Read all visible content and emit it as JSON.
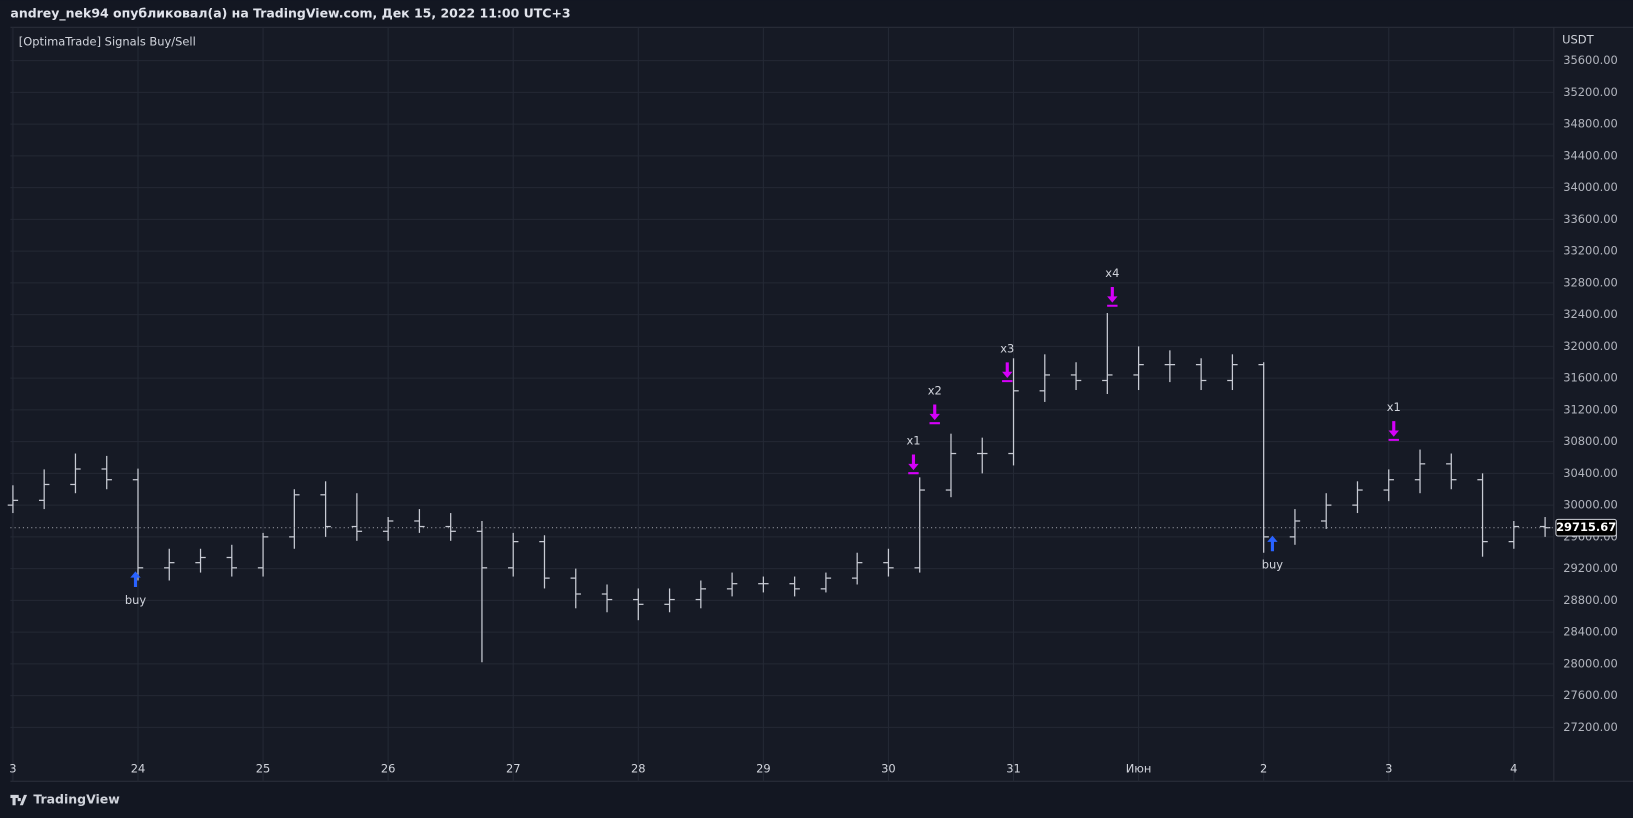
{
  "header": {
    "title": "andrey_nek94 опубликовал(а) на TradingView.com, Дек 15, 2022 11:00 UTC+3"
  },
  "footer": {
    "brand": "TradingView"
  },
  "chart_data": {
    "type": "ohlc",
    "title": "[OptimaTrade] Signals Buy/Sell",
    "y_axis_label": "USDT",
    "color": "#c8cbd4",
    "grid": true,
    "last_price": 29715.67,
    "x": [
      0,
      0.25,
      0.5,
      0.75,
      1,
      1.25,
      1.5,
      1.75,
      2,
      2.25,
      2.5,
      2.75,
      3,
      3.25,
      3.5,
      3.75,
      4,
      4.25,
      4.5,
      4.75,
      5,
      5.25,
      5.5,
      5.75,
      6,
      6.25,
      6.5,
      6.75,
      7,
      7.25,
      7.5,
      7.75,
      8,
      8.25,
      8.5,
      8.75,
      9,
      9.25,
      9.5,
      9.75,
      10,
      10.25,
      10.5,
      10.75,
      11,
      11.25,
      11.5,
      11.75,
      12,
      12.25
    ],
    "open": [
      30000,
      30060,
      30260,
      30455,
      30320,
      29210,
      29275,
      29340,
      29210,
      29600,
      30130,
      29730,
      29670,
      29800,
      29730,
      29670,
      29210,
      29540,
      29080,
      28880,
      28810,
      28750,
      28810,
      28945,
      29010,
      29010,
      28945,
      29080,
      29275,
      29210,
      30190,
      30650,
      30650,
      31440,
      31640,
      31570,
      31640,
      31770,
      31770,
      31570,
      31770,
      29600,
      29800,
      30000,
      30190,
      30320,
      30520,
      30320,
      29540,
      29730
    ],
    "high": [
      30250,
      30450,
      30650,
      30620,
      30460,
      29450,
      29450,
      29500,
      29650,
      30200,
      30300,
      30150,
      29850,
      29950,
      29900,
      29800,
      29650,
      29620,
      29200,
      29000,
      28950,
      28950,
      29050,
      29150,
      29100,
      29100,
      29150,
      29400,
      29450,
      30350,
      30900,
      30850,
      31850,
      31900,
      31800,
      32420,
      32000,
      31950,
      31850,
      31900,
      31800,
      29950,
      30150,
      30300,
      30450,
      30700,
      30650,
      30400,
      29800,
      29850
    ],
    "low": [
      29900,
      29950,
      30150,
      30200,
      29050,
      29050,
      29150,
      29100,
      29100,
      29450,
      29600,
      29550,
      29550,
      29650,
      29550,
      28020,
      29100,
      28950,
      28700,
      28650,
      28550,
      28650,
      28700,
      28850,
      28900,
      28850,
      28900,
      29000,
      29100,
      29150,
      30100,
      30400,
      30500,
      31300,
      31450,
      31400,
      31450,
      31550,
      31450,
      31450,
      29400,
      29500,
      29700,
      29900,
      30050,
      30150,
      30200,
      29350,
      29450,
      29600
    ],
    "close": [
      30060,
      30260,
      30455,
      30320,
      29210,
      29275,
      29340,
      29210,
      29600,
      30130,
      29730,
      29670,
      29800,
      29730,
      29670,
      29210,
      29540,
      29080,
      28880,
      28810,
      28750,
      28810,
      28945,
      29010,
      29010,
      28945,
      29080,
      29275,
      29210,
      30190,
      30650,
      30650,
      31440,
      31640,
      31570,
      31640,
      31770,
      31770,
      31570,
      31770,
      29600,
      29800,
      30000,
      30190,
      30320,
      30520,
      30320,
      29540,
      29730,
      29715.67
    ],
    "signals": [
      {
        "x": 0.98,
        "price": 29060,
        "label": "buy",
        "side": "buy",
        "color": "#2962ff"
      },
      {
        "x": 7.2,
        "price": 30520,
        "label": "x1",
        "side": "sell",
        "color": "#d500f9"
      },
      {
        "x": 7.37,
        "price": 31150,
        "label": "x2",
        "side": "sell",
        "color": "#d500f9"
      },
      {
        "x": 7.95,
        "price": 31680,
        "label": "x3",
        "side": "sell",
        "color": "#d500f9"
      },
      {
        "x": 8.79,
        "price": 32630,
        "label": "x4",
        "side": "sell",
        "color": "#d500f9"
      },
      {
        "x": 10.07,
        "price": 29510,
        "label": "buy",
        "side": "buy",
        "color": "#2962ff"
      },
      {
        "x": 11.04,
        "price": 30940,
        "label": "x1",
        "side": "sell",
        "color": "#d500f9"
      }
    ],
    "xlim": [
      -0.02,
      12.32
    ],
    "ylim": [
      26520,
      36020
    ],
    "xticks": [
      {
        "value": 0,
        "label": "3"
      },
      {
        "value": 1,
        "label": "24"
      },
      {
        "value": 2,
        "label": "25"
      },
      {
        "value": 3,
        "label": "26"
      },
      {
        "value": 4,
        "label": "27"
      },
      {
        "value": 5,
        "label": "28"
      },
      {
        "value": 6,
        "label": "29"
      },
      {
        "value": 7,
        "label": "30"
      },
      {
        "value": 8,
        "label": "31"
      },
      {
        "value": 9,
        "label": "Июн"
      },
      {
        "value": 10,
        "label": "2"
      },
      {
        "value": 11,
        "label": "3"
      },
      {
        "value": 12,
        "label": "4"
      }
    ],
    "yticks": [
      {
        "value": 27200,
        "label": "27200.00"
      },
      {
        "value": 27600,
        "label": "27600.00"
      },
      {
        "value": 28000,
        "label": "28000.00"
      },
      {
        "value": 28400,
        "label": "28400.00"
      },
      {
        "value": 28800,
        "label": "28800.00"
      },
      {
        "value": 29200,
        "label": "29200.00"
      },
      {
        "value": 29600,
        "label": "29600.00"
      },
      {
        "value": 30000,
        "label": "30000.00"
      },
      {
        "value": 30400,
        "label": "30400.00"
      },
      {
        "value": 30800,
        "label": "30800.00"
      },
      {
        "value": 31200,
        "label": "31200.00"
      },
      {
        "value": 31600,
        "label": "31600.00"
      },
      {
        "value": 32000,
        "label": "32000.00"
      },
      {
        "value": 32400,
        "label": "32400.00"
      },
      {
        "value": 32800,
        "label": "32800.00"
      },
      {
        "value": 33200,
        "label": "33200.00"
      },
      {
        "value": 33600,
        "label": "33600.00"
      },
      {
        "value": 34000,
        "label": "34000.00"
      },
      {
        "value": 34400,
        "label": "34400.00"
      },
      {
        "value": 34800,
        "label": "34800.00"
      },
      {
        "value": 35200,
        "label": "35200.00"
      },
      {
        "value": 35600,
        "label": "35600.00"
      }
    ]
  }
}
